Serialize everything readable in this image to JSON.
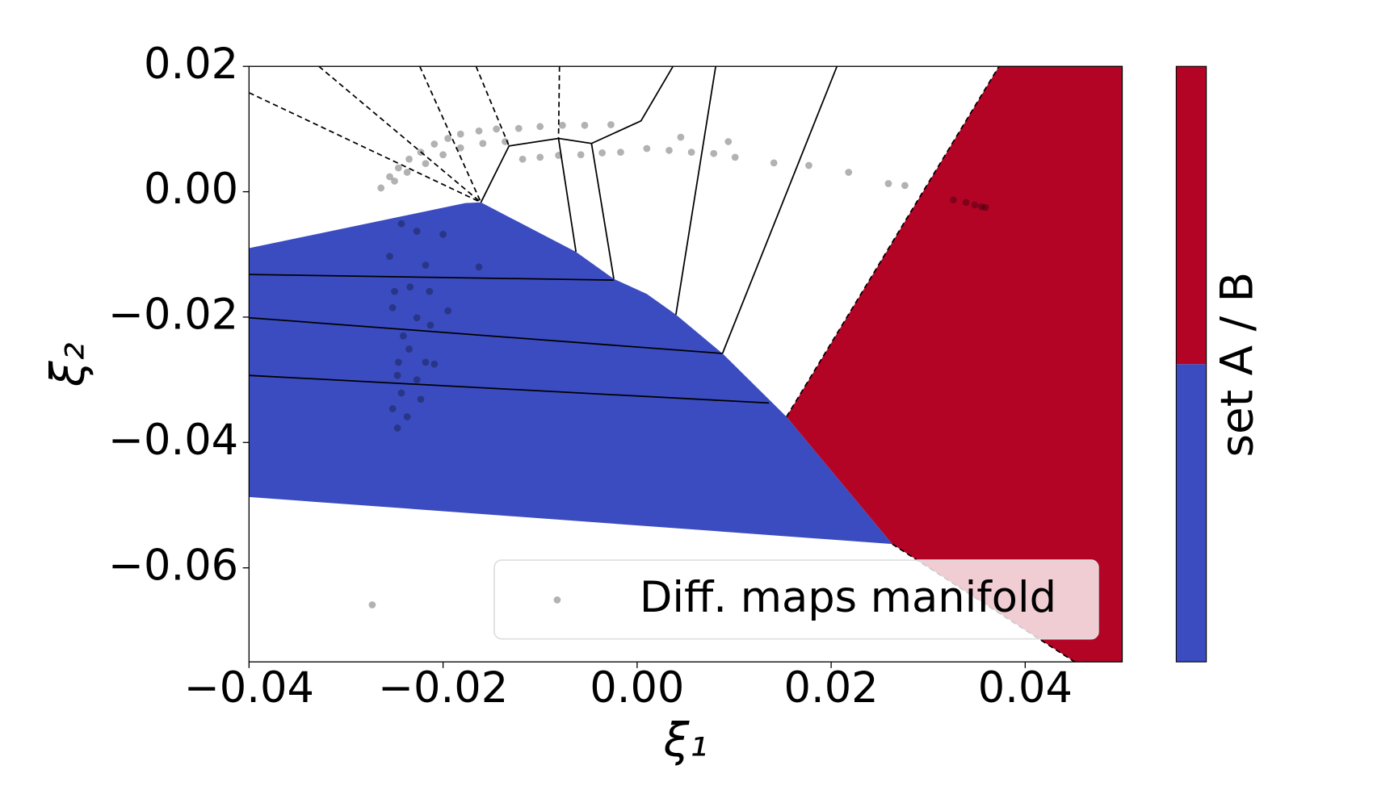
{
  "chart_data": {
    "type": "scatter",
    "x_label": "ξ₁",
    "y_label": "ξ₂",
    "xlim": [
      -0.04,
      0.05
    ],
    "ylim": [
      -0.075,
      0.02
    ],
    "xticks": [
      {
        "value": -0.04,
        "label": "−0.04"
      },
      {
        "value": -0.02,
        "label": "−0.02"
      },
      {
        "value": 0,
        "label": "0.00"
      },
      {
        "value": 0.02,
        "label": "0.02"
      },
      {
        "value": 0.04,
        "label": "0.04"
      }
    ],
    "yticks": [
      {
        "value": 0.02,
        "label": "0.02"
      },
      {
        "value": 0,
        "label": "0.00"
      },
      {
        "value": -0.02,
        "label": "−0.02"
      },
      {
        "value": -0.04,
        "label": "−0.04"
      },
      {
        "value": -0.06,
        "label": "−0.06"
      }
    ],
    "legend_position": "lower right",
    "series": [
      {
        "name": "Diff. maps manifold",
        "color": "#000000",
        "opacity": 0.3,
        "x": [
          -0.0264,
          -0.0255,
          -0.0246,
          -0.0235,
          -0.0223,
          -0.0209,
          -0.0195,
          -0.0182,
          -0.0163,
          -0.0145,
          -0.0122,
          -0.01,
          -0.0077,
          -0.0054,
          -0.0027,
          -0.025,
          -0.0237,
          -0.0218,
          -0.02,
          -0.0182,
          -0.0159,
          -0.0136,
          -0.0118,
          -0.01,
          -0.0081,
          -0.0058,
          -0.0036,
          -0.0017,
          0.001,
          0.0033,
          0.0056,
          0.0079,
          0.0101,
          0.0045,
          0.0094,
          0.0141,
          0.0177,
          0.0218,
          0.0259,
          0.0276,
          0.0326,
          0.0339,
          0.0348,
          0.0355,
          0.0359,
          -0.0243,
          -0.0227,
          -0.02,
          -0.0255,
          -0.0218,
          -0.0163,
          -0.025,
          -0.0234,
          -0.0214,
          -0.0195,
          -0.0252,
          -0.0227,
          -0.0213,
          -0.0241,
          -0.0235,
          -0.0246,
          -0.0218,
          -0.0209,
          -0.0247,
          -0.0227,
          -0.0243,
          -0.0223,
          -0.0252,
          -0.0237,
          -0.0247,
          -0.0273
        ],
        "y": [
          0.0006,
          0.0024,
          0.0038,
          0.0052,
          0.0063,
          0.0076,
          0.0085,
          0.0092,
          0.0097,
          0.01,
          0.0101,
          0.0104,
          0.0106,
          0.0106,
          0.0107,
          0.0017,
          0.0031,
          0.0045,
          0.0059,
          0.007,
          0.0077,
          0.008,
          0.0052,
          0.0055,
          0.0058,
          0.0059,
          0.0062,
          0.0063,
          0.0069,
          0.0066,
          0.0063,
          0.0061,
          0.0055,
          0.0087,
          0.008,
          0.0046,
          0.0042,
          0.0031,
          0.0013,
          0.001,
          -0.0013,
          -0.0017,
          -0.0021,
          -0.0024,
          -0.0025,
          -0.0051,
          -0.0063,
          -0.0068,
          -0.0103,
          -0.0117,
          -0.012,
          -0.0159,
          -0.0152,
          -0.0159,
          -0.019,
          -0.0185,
          -0.0201,
          -0.0213,
          -0.023,
          -0.0251,
          -0.0272,
          -0.0272,
          -0.0275,
          -0.0293,
          -0.03,
          -0.0321,
          -0.0331,
          -0.0346,
          -0.0359,
          -0.0377,
          -0.0659
        ]
      }
    ],
    "regions": [
      {
        "color": "#3b4cc0",
        "x": [
          -0.04,
          -0.0177,
          -0.0161,
          -0.0063,
          -0.0024,
          0.001,
          0.004,
          0.0088,
          0.0154,
          0.0263,
          -0.04
        ],
        "y": [
          -0.009,
          -0.0018,
          -0.0017,
          -0.0096,
          -0.0139,
          -0.0163,
          -0.0196,
          -0.0258,
          -0.0359,
          -0.0562,
          -0.0487
        ]
      },
      {
        "color": "#b40426",
        "x": [
          0.0154,
          0.0373,
          0.05,
          0.05,
          0.0451,
          0.0263
        ],
        "y": [
          -0.0359,
          0.02,
          0.02,
          -0.075,
          -0.075,
          -0.0562
        ]
      }
    ],
    "lines": [
      {
        "style": "solid",
        "x": [
          -0.04,
          -0.0024
        ],
        "y": [
          -0.0132,
          -0.0141
        ]
      },
      {
        "style": "solid",
        "x": [
          -0.04,
          0.0088
        ],
        "y": [
          -0.0201,
          -0.0258
        ]
      },
      {
        "style": "solid",
        "x": [
          -0.04,
          0.0136
        ],
        "y": [
          -0.0293,
          -0.0337
        ]
      },
      {
        "style": "solid",
        "x": [
          -0.0161,
          -0.0132,
          -0.0081,
          -0.0047,
          0.0004,
          0.0037
        ],
        "y": [
          -0.0017,
          0.0073,
          0.0085,
          0.0077,
          0.0113,
          0.02
        ]
      },
      {
        "style": "solid",
        "x": [
          -0.0081,
          -0.0063
        ],
        "y": [
          0.0085,
          -0.0096
        ]
      },
      {
        "style": "solid",
        "x": [
          -0.0047,
          -0.0024
        ],
        "y": [
          0.0077,
          -0.0139
        ]
      },
      {
        "style": "solid",
        "x": [
          0.004,
          0.0081
        ],
        "y": [
          -0.0196,
          0.02
        ]
      },
      {
        "style": "solid",
        "x": [
          0.0088,
          0.0206
        ],
        "y": [
          -0.0258,
          0.02
        ]
      },
      {
        "style": "dashed",
        "x": [
          -0.04,
          -0.0161
        ],
        "y": [
          0.0158,
          -0.0017
        ]
      },
      {
        "style": "dashed",
        "x": [
          -0.0328,
          -0.0161
        ],
        "y": [
          0.02,
          -0.0017
        ]
      },
      {
        "style": "dashed",
        "x": [
          -0.0224,
          -0.0161
        ],
        "y": [
          0.02,
          -0.0017
        ]
      },
      {
        "style": "dashed",
        "x": [
          -0.0166,
          -0.0132
        ],
        "y": [
          0.02,
          0.0073
        ]
      },
      {
        "style": "dashed",
        "x": [
          -0.008,
          -0.0081
        ],
        "y": [
          0.02,
          0.0085
        ]
      },
      {
        "style": "dashed",
        "x": [
          0.0154,
          0.0373
        ],
        "y": [
          -0.0359,
          0.02
        ]
      },
      {
        "style": "dashed",
        "x": [
          0.0263,
          0.0451
        ],
        "y": [
          -0.0562,
          -0.075
        ]
      }
    ],
    "colorbar_label": "set A / B",
    "colorbar_colors": [
      "#3b4cc0",
      "#b40426"
    ]
  }
}
